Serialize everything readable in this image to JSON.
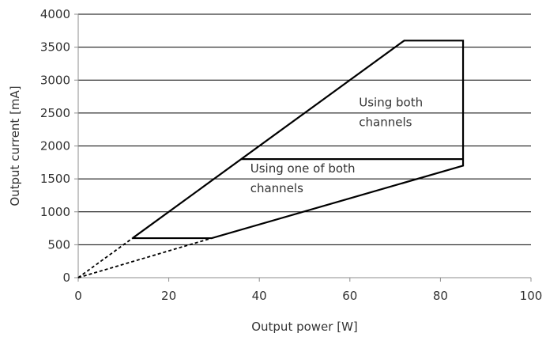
{
  "chart_data": {
    "type": "line",
    "title": "",
    "xlabel": "Output power [W]",
    "ylabel": "Output current [mA]",
    "xlim": [
      0,
      100
    ],
    "ylim": [
      0,
      4000
    ],
    "x_ticks": [
      0,
      20,
      40,
      60,
      80,
      100
    ],
    "y_ticks": [
      0,
      500,
      1000,
      1500,
      2000,
      2500,
      3000,
      3500,
      4000
    ],
    "grid": "horizontal",
    "legend": "none",
    "colors": {
      "line": "#000000",
      "grid": "#000000",
      "axis": "#8c8c8c",
      "text": "#333333"
    },
    "series": [
      {
        "style": "solid",
        "points": [
          [
            12,
            600
          ],
          [
            72,
            3600
          ],
          [
            85,
            3600
          ],
          [
            85,
            1700
          ],
          [
            29.5,
            600
          ],
          [
            12,
            600
          ]
        ]
      },
      {
        "style": "solid",
        "points": [
          [
            36,
            1800
          ],
          [
            85,
            1800
          ]
        ]
      },
      {
        "style": "dashed",
        "points": [
          [
            0,
            0
          ],
          [
            12,
            600
          ]
        ]
      },
      {
        "style": "dashed",
        "points": [
          [
            0,
            0
          ],
          [
            29.5,
            600
          ]
        ]
      }
    ],
    "annotations": [
      {
        "lines": [
          "Using both",
          "channels"
        ],
        "x": 62,
        "y": 2600
      },
      {
        "lines": [
          "Using one of both",
          "channels"
        ],
        "x": 38,
        "y": 1600
      }
    ]
  }
}
